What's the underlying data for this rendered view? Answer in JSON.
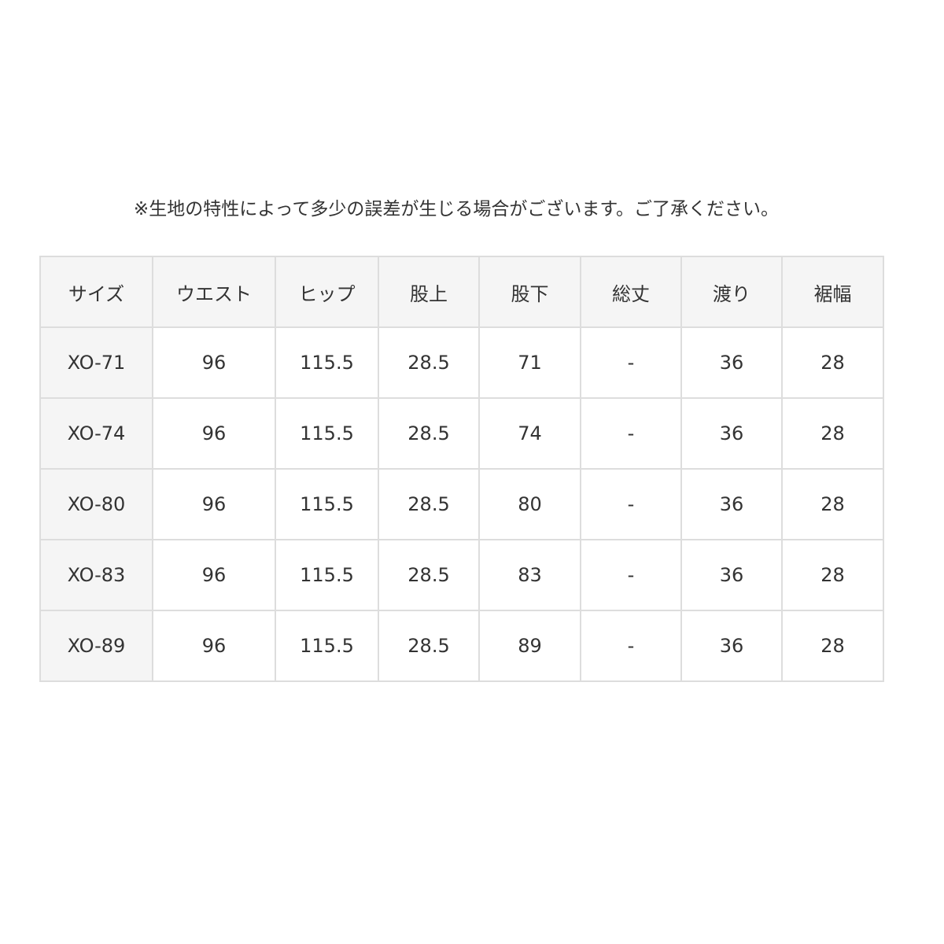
{
  "note": "※生地の特性によって多少の誤差が生じる場合がございます。ご了承ください。",
  "table": {
    "headers": [
      "サイズ",
      "ウエスト",
      "ヒップ",
      "股上",
      "股下",
      "総丈",
      "渡り",
      "裾幅"
    ],
    "rows": [
      [
        "XO-71",
        "96",
        "115.5",
        "28.5",
        "71",
        "-",
        "36",
        "28"
      ],
      [
        "XO-74",
        "96",
        "115.5",
        "28.5",
        "74",
        "-",
        "36",
        "28"
      ],
      [
        "XO-80",
        "96",
        "115.5",
        "28.5",
        "80",
        "-",
        "36",
        "28"
      ],
      [
        "XO-83",
        "96",
        "115.5",
        "28.5",
        "83",
        "-",
        "36",
        "28"
      ],
      [
        "XO-89",
        "96",
        "115.5",
        "28.5",
        "89",
        "-",
        "36",
        "28"
      ]
    ]
  }
}
